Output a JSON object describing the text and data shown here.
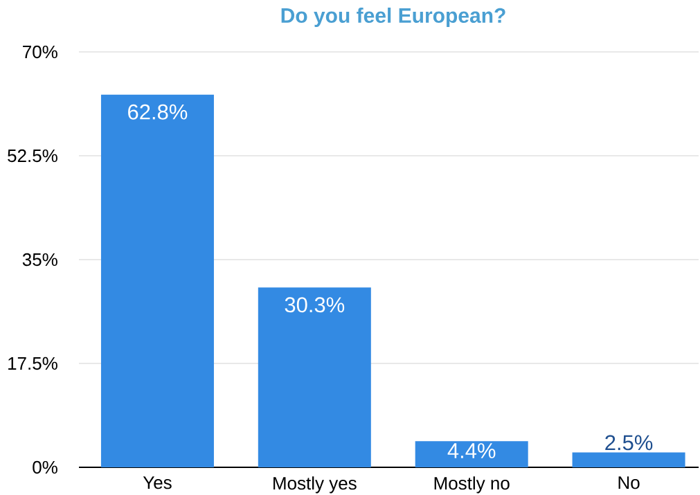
{
  "chart_data": {
    "type": "bar",
    "title": "Do you feel European?",
    "categories": [
      "Yes",
      "Mostly yes",
      "Mostly no",
      "No"
    ],
    "values": [
      62.8,
      30.3,
      4.4,
      2.5
    ],
    "value_labels": [
      "62.8%",
      "30.3%",
      "4.4%",
      "2.5%"
    ],
    "color": "#338ae3",
    "ylim": [
      0,
      70
    ],
    "yticks": [
      {
        "value": 0,
        "label": "0%"
      },
      {
        "value": 17.5,
        "label": "17.5%"
      },
      {
        "value": 35,
        "label": "35%"
      },
      {
        "value": 52.5,
        "label": "52.5%"
      },
      {
        "value": 70,
        "label": "70%"
      }
    ],
    "grid": "y"
  }
}
